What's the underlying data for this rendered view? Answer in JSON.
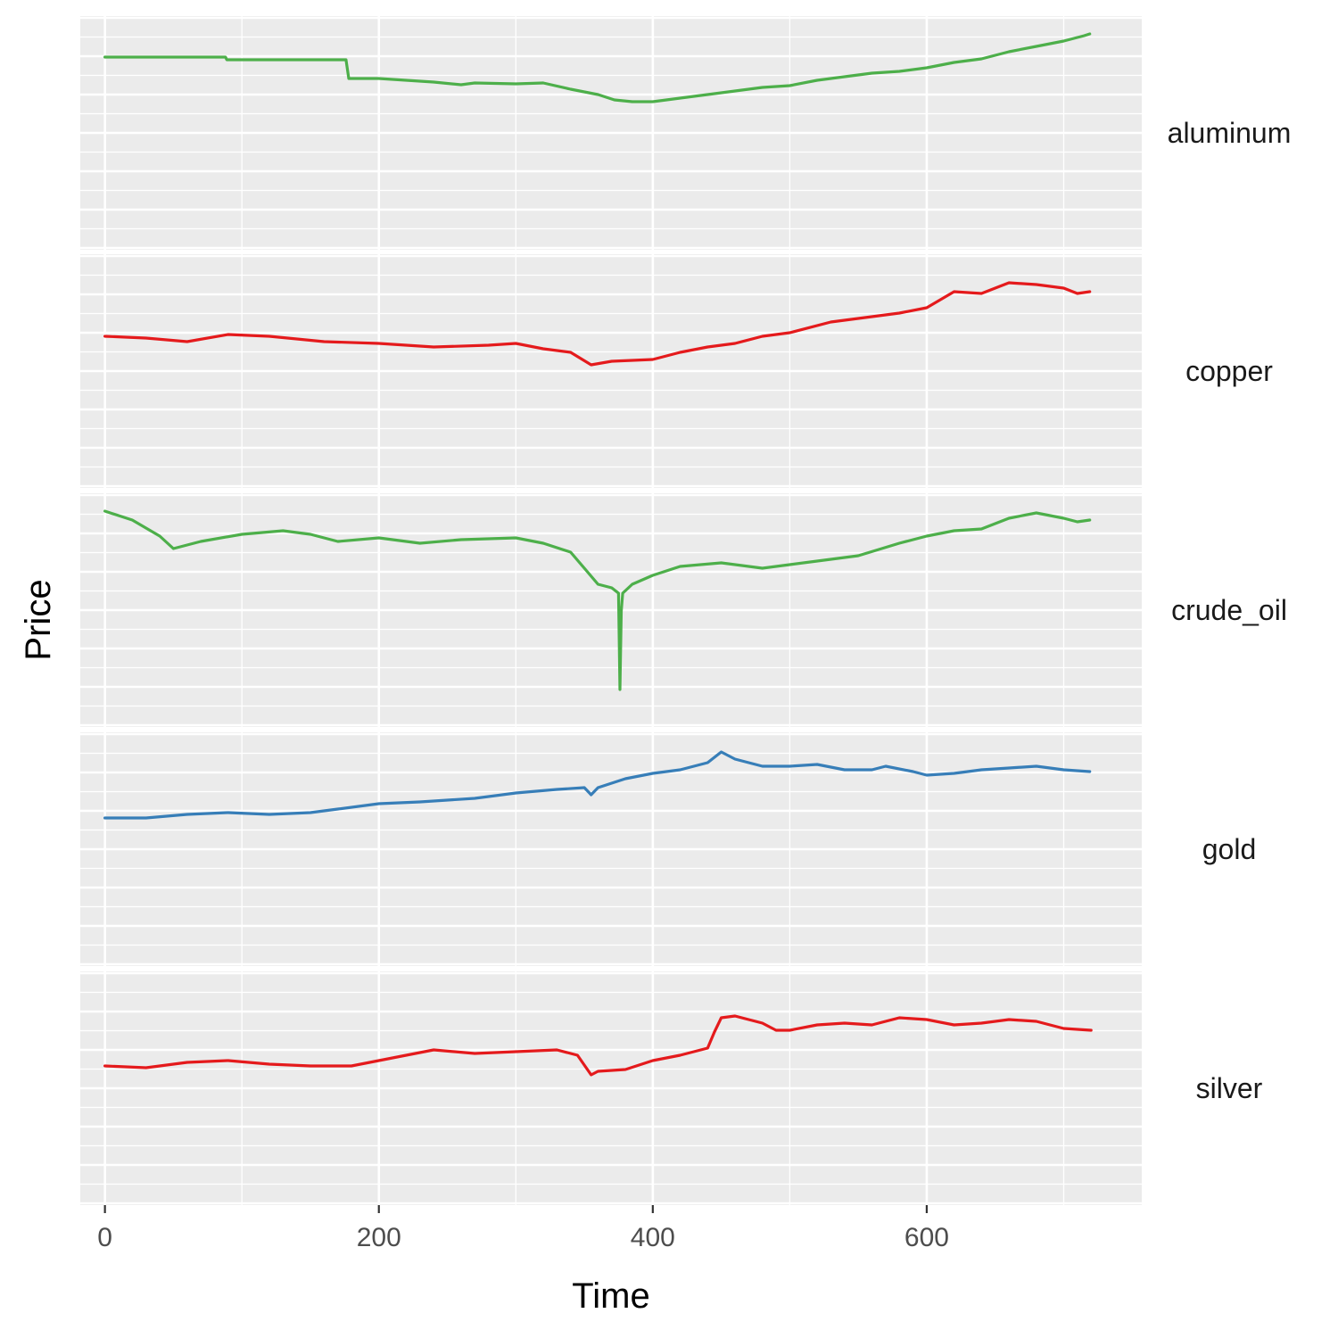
{
  "chart_data": {
    "type": "line",
    "facet": "rows",
    "xlabel": "Time",
    "ylabel": "Price",
    "xlim": [
      -18,
      757
    ],
    "x_ticks": [
      0,
      200,
      400,
      600
    ],
    "y_ticks_shown": false,
    "grid": true,
    "legend": "none",
    "panel_background": "#ebebeb",
    "series": [
      {
        "name": "aluminum",
        "color": "#4daf4a",
        "ylim": [
          0,
          100
        ],
        "points": [
          [
            0,
            87
          ],
          [
            88,
            87
          ],
          [
            89,
            85.5
          ],
          [
            176,
            85.5
          ],
          [
            178,
            75
          ],
          [
            200,
            75
          ],
          [
            240,
            73
          ],
          [
            260,
            71.5
          ],
          [
            270,
            72.5
          ],
          [
            300,
            72
          ],
          [
            320,
            72.5
          ],
          [
            340,
            69
          ],
          [
            360,
            66
          ],
          [
            372,
            63
          ],
          [
            385,
            62
          ],
          [
            400,
            62
          ],
          [
            420,
            64
          ],
          [
            440,
            66
          ],
          [
            460,
            68
          ],
          [
            480,
            70
          ],
          [
            500,
            71
          ],
          [
            520,
            74
          ],
          [
            540,
            76
          ],
          [
            560,
            78
          ],
          [
            580,
            79
          ],
          [
            600,
            81
          ],
          [
            620,
            84
          ],
          [
            640,
            86
          ],
          [
            660,
            90
          ],
          [
            680,
            93
          ],
          [
            700,
            96
          ],
          [
            715,
            99
          ],
          [
            719,
            100
          ]
        ]
      },
      {
        "name": "copper",
        "color": "#e41a1c",
        "ylim": [
          0,
          100
        ],
        "points": [
          [
            0,
            64
          ],
          [
            30,
            63
          ],
          [
            60,
            61
          ],
          [
            90,
            65
          ],
          [
            120,
            64
          ],
          [
            160,
            61
          ],
          [
            200,
            60
          ],
          [
            240,
            58
          ],
          [
            280,
            59
          ],
          [
            300,
            60
          ],
          [
            320,
            57
          ],
          [
            340,
            55
          ],
          [
            355,
            48
          ],
          [
            370,
            50
          ],
          [
            400,
            51
          ],
          [
            420,
            55
          ],
          [
            440,
            58
          ],
          [
            460,
            60
          ],
          [
            480,
            64
          ],
          [
            500,
            66
          ],
          [
            530,
            72
          ],
          [
            560,
            75
          ],
          [
            580,
            77
          ],
          [
            600,
            80
          ],
          [
            620,
            89
          ],
          [
            640,
            88
          ],
          [
            660,
            94
          ],
          [
            680,
            93
          ],
          [
            700,
            91
          ],
          [
            710,
            88
          ],
          [
            719,
            89
          ]
        ]
      },
      {
        "name": "crude_oil",
        "color": "#4daf4a",
        "ylim": [
          0,
          100
        ],
        "points": [
          [
            0,
            100
          ],
          [
            20,
            95
          ],
          [
            40,
            86
          ],
          [
            50,
            79
          ],
          [
            70,
            83
          ],
          [
            100,
            87
          ],
          [
            130,
            89
          ],
          [
            150,
            87
          ],
          [
            170,
            83
          ],
          [
            200,
            85
          ],
          [
            230,
            82
          ],
          [
            260,
            84
          ],
          [
            300,
            85
          ],
          [
            320,
            82
          ],
          [
            340,
            77
          ],
          [
            350,
            68
          ],
          [
            360,
            59
          ],
          [
            370,
            57
          ],
          [
            375,
            54
          ],
          [
            376,
            0
          ],
          [
            377,
            44
          ],
          [
            378,
            54
          ],
          [
            385,
            59
          ],
          [
            400,
            64
          ],
          [
            420,
            69
          ],
          [
            450,
            71
          ],
          [
            480,
            68
          ],
          [
            500,
            70
          ],
          [
            520,
            72
          ],
          [
            550,
            75
          ],
          [
            580,
            82
          ],
          [
            600,
            86
          ],
          [
            620,
            89
          ],
          [
            640,
            90
          ],
          [
            660,
            96
          ],
          [
            680,
            99
          ],
          [
            700,
            96
          ],
          [
            710,
            94
          ],
          [
            719,
            95
          ]
        ]
      },
      {
        "name": "gold",
        "color": "#377eb8",
        "ylim": [
          0,
          100
        ],
        "points": [
          [
            0,
            62
          ],
          [
            30,
            62
          ],
          [
            60,
            64
          ],
          [
            90,
            65
          ],
          [
            120,
            64
          ],
          [
            150,
            65
          ],
          [
            170,
            67
          ],
          [
            200,
            70
          ],
          [
            230,
            71
          ],
          [
            270,
            73
          ],
          [
            300,
            76
          ],
          [
            330,
            78
          ],
          [
            350,
            79
          ],
          [
            355,
            75
          ],
          [
            360,
            79
          ],
          [
            380,
            84
          ],
          [
            400,
            87
          ],
          [
            420,
            89
          ],
          [
            440,
            93
          ],
          [
            450,
            99
          ],
          [
            460,
            95
          ],
          [
            480,
            91
          ],
          [
            500,
            91
          ],
          [
            520,
            92
          ],
          [
            540,
            89
          ],
          [
            560,
            89
          ],
          [
            570,
            91
          ],
          [
            590,
            88
          ],
          [
            600,
            86
          ],
          [
            620,
            87
          ],
          [
            640,
            89
          ],
          [
            660,
            90
          ],
          [
            680,
            91
          ],
          [
            700,
            89
          ],
          [
            719,
            88
          ]
        ]
      },
      {
        "name": "silver",
        "color": "#e41a1c",
        "ylim": [
          0,
          100
        ],
        "points": [
          [
            0,
            57
          ],
          [
            30,
            56
          ],
          [
            60,
            59
          ],
          [
            90,
            60
          ],
          [
            120,
            58
          ],
          [
            150,
            57
          ],
          [
            180,
            57
          ],
          [
            200,
            60
          ],
          [
            220,
            63
          ],
          [
            240,
            66
          ],
          [
            270,
            64
          ],
          [
            300,
            65
          ],
          [
            330,
            66
          ],
          [
            345,
            63
          ],
          [
            355,
            52
          ],
          [
            360,
            54
          ],
          [
            380,
            55
          ],
          [
            400,
            60
          ],
          [
            420,
            63
          ],
          [
            440,
            67
          ],
          [
            445,
            76
          ],
          [
            450,
            84
          ],
          [
            460,
            85
          ],
          [
            470,
            83
          ],
          [
            480,
            81
          ],
          [
            490,
            77
          ],
          [
            500,
            77
          ],
          [
            520,
            80
          ],
          [
            540,
            81
          ],
          [
            560,
            80
          ],
          [
            580,
            84
          ],
          [
            600,
            83
          ],
          [
            620,
            80
          ],
          [
            640,
            81
          ],
          [
            660,
            83
          ],
          [
            680,
            82
          ],
          [
            700,
            78
          ],
          [
            720,
            77
          ]
        ]
      }
    ]
  }
}
